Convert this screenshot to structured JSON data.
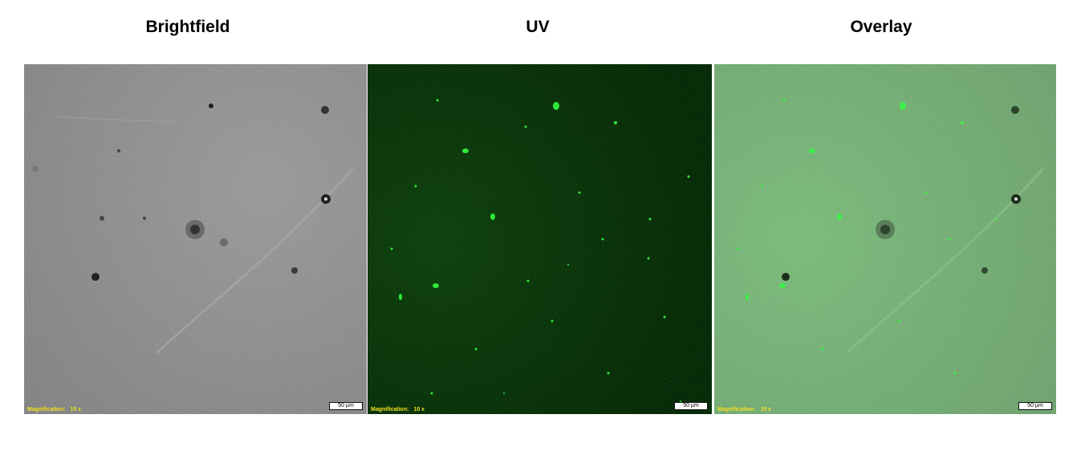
{
  "titles": {
    "brightfield": "Brightfield",
    "uv": "UV",
    "overlay": "Overlay"
  },
  "panels": [
    {
      "key": "brightfield",
      "magnification_label": "Magnification:",
      "magnification_value": "10 x",
      "scale_bar": "50 µm"
    },
    {
      "key": "uv",
      "magnification_label": "Magnification:",
      "magnification_value": "10 x",
      "scale_bar": "50 µm"
    },
    {
      "key": "overlay",
      "magnification_label": "Magnification:",
      "magnification_value": "10 x",
      "scale_bar": "50 µm"
    }
  ],
  "colors": {
    "brightfield_bg": "#8a8a8a",
    "uv_bg": "#062b06",
    "uv_spot": "#2ee83a",
    "overlay_bg": "#6ea56e",
    "overlay_spot": "#3df04a",
    "annotation_text": "#f0e020"
  }
}
